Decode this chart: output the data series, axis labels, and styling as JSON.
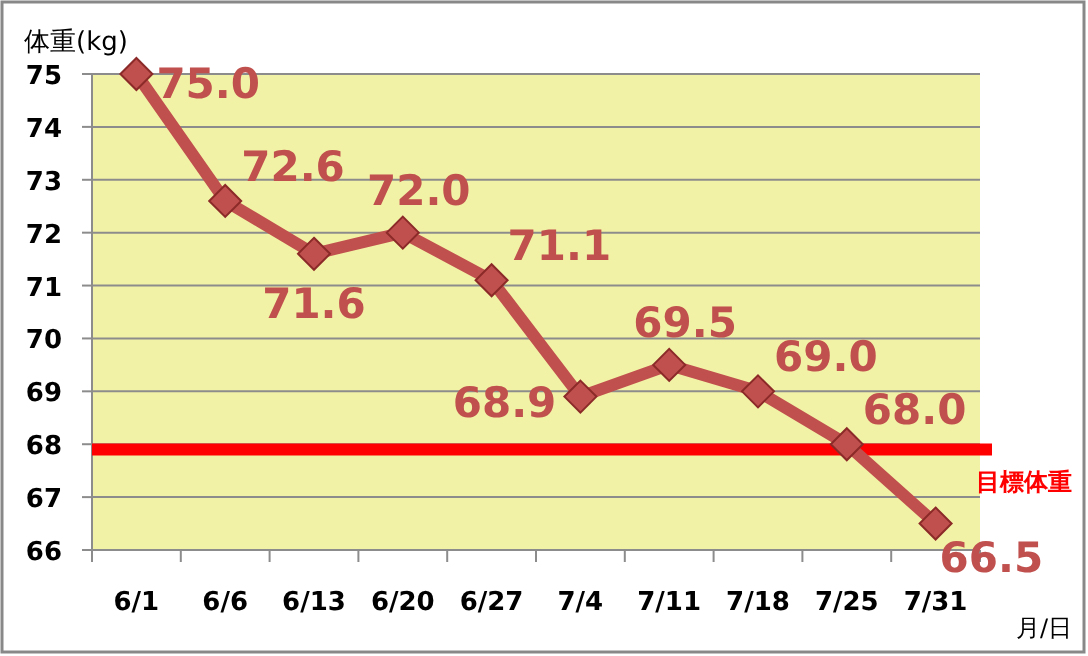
{
  "chart_data": {
    "type": "line",
    "ylabel": "体重(kg)",
    "xlabel": "月/日",
    "categories": [
      "6/1",
      "6/6",
      "6/13",
      "6/20",
      "6/27",
      "7/4",
      "7/11",
      "7/18",
      "7/25",
      "7/31"
    ],
    "series": [
      {
        "color": "#c0504d",
        "values": [
          75.0,
          72.6,
          71.6,
          72.0,
          71.1,
          68.9,
          69.5,
          69.0,
          68.0,
          66.5
        ],
        "value_labels": [
          "75.0",
          "72.6",
          "71.6",
          "72.0",
          "71.1",
          "68.9",
          "69.5",
          "69.0",
          "68.0",
          "66.5"
        ]
      }
    ],
    "ylim": [
      66,
      75
    ],
    "yticks": [
      66,
      67,
      68,
      69,
      70,
      71,
      72,
      73,
      74,
      75
    ],
    "grid": "y",
    "marker": "diamond",
    "line_style": "solid",
    "ref_lines": [
      {
        "axis": "y",
        "value": 67.9,
        "label": "目標体重",
        "color": "#ff0000"
      }
    ]
  }
}
